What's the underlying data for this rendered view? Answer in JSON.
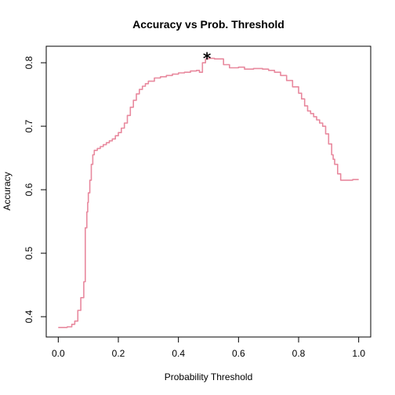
{
  "chart_data": {
    "type": "line",
    "title": "Accuracy vs Prob. Threshold",
    "xlabel": "Probability Threshold",
    "ylabel": "Accuracy",
    "xlim": [
      -0.04,
      1.04
    ],
    "ylim": [
      0.368,
      0.826
    ],
    "xticks": [
      0.0,
      0.2,
      0.4,
      0.6,
      0.8,
      1.0
    ],
    "xtick_labels": [
      "0.0",
      "0.2",
      "0.4",
      "0.6",
      "0.8",
      "1.0"
    ],
    "yticks": [
      0.4,
      0.5,
      0.6,
      0.7,
      0.8
    ],
    "ytick_labels": [
      "0.4",
      "0.5",
      "0.6",
      "0.7",
      "0.8"
    ],
    "grid": false,
    "line_color": "#e8899e",
    "marker": {
      "x": 0.495,
      "y": 0.808,
      "symbol": "*"
    },
    "series": [
      {
        "x": [
          0.0,
          0.03,
          0.045,
          0.055,
          0.065,
          0.075,
          0.085,
          0.09,
          0.095,
          0.098,
          0.1,
          0.105,
          0.11,
          0.115,
          0.12,
          0.125,
          0.13,
          0.14,
          0.15,
          0.16,
          0.17,
          0.18,
          0.19,
          0.2,
          0.21,
          0.22,
          0.23,
          0.24,
          0.25,
          0.26,
          0.27,
          0.28,
          0.29,
          0.3,
          0.32,
          0.34,
          0.36,
          0.38,
          0.4,
          0.42,
          0.44,
          0.46,
          0.47,
          0.48,
          0.49,
          0.5,
          0.52,
          0.55,
          0.57,
          0.6,
          0.62,
          0.65,
          0.68,
          0.7,
          0.72,
          0.74,
          0.76,
          0.78,
          0.8,
          0.81,
          0.82,
          0.83,
          0.84,
          0.85,
          0.86,
          0.87,
          0.88,
          0.89,
          0.9,
          0.91,
          0.915,
          0.92,
          0.93,
          0.94,
          0.95,
          0.96,
          0.97,
          0.98,
          0.99,
          1.0
        ],
        "y": [
          0.383,
          0.384,
          0.388,
          0.393,
          0.41,
          0.43,
          0.455,
          0.54,
          0.565,
          0.58,
          0.595,
          0.615,
          0.64,
          0.655,
          0.662,
          0.662,
          0.665,
          0.668,
          0.671,
          0.674,
          0.677,
          0.68,
          0.685,
          0.69,
          0.697,
          0.705,
          0.717,
          0.73,
          0.741,
          0.751,
          0.758,
          0.763,
          0.767,
          0.771,
          0.776,
          0.778,
          0.78,
          0.782,
          0.784,
          0.785,
          0.787,
          0.788,
          0.785,
          0.8,
          0.806,
          0.807,
          0.806,
          0.797,
          0.792,
          0.793,
          0.79,
          0.791,
          0.79,
          0.788,
          0.785,
          0.78,
          0.772,
          0.762,
          0.752,
          0.743,
          0.732,
          0.724,
          0.72,
          0.715,
          0.71,
          0.705,
          0.7,
          0.688,
          0.672,
          0.655,
          0.648,
          0.64,
          0.625,
          0.615,
          0.615,
          0.615,
          0.615,
          0.616,
          0.616,
          0.616
        ]
      }
    ]
  }
}
